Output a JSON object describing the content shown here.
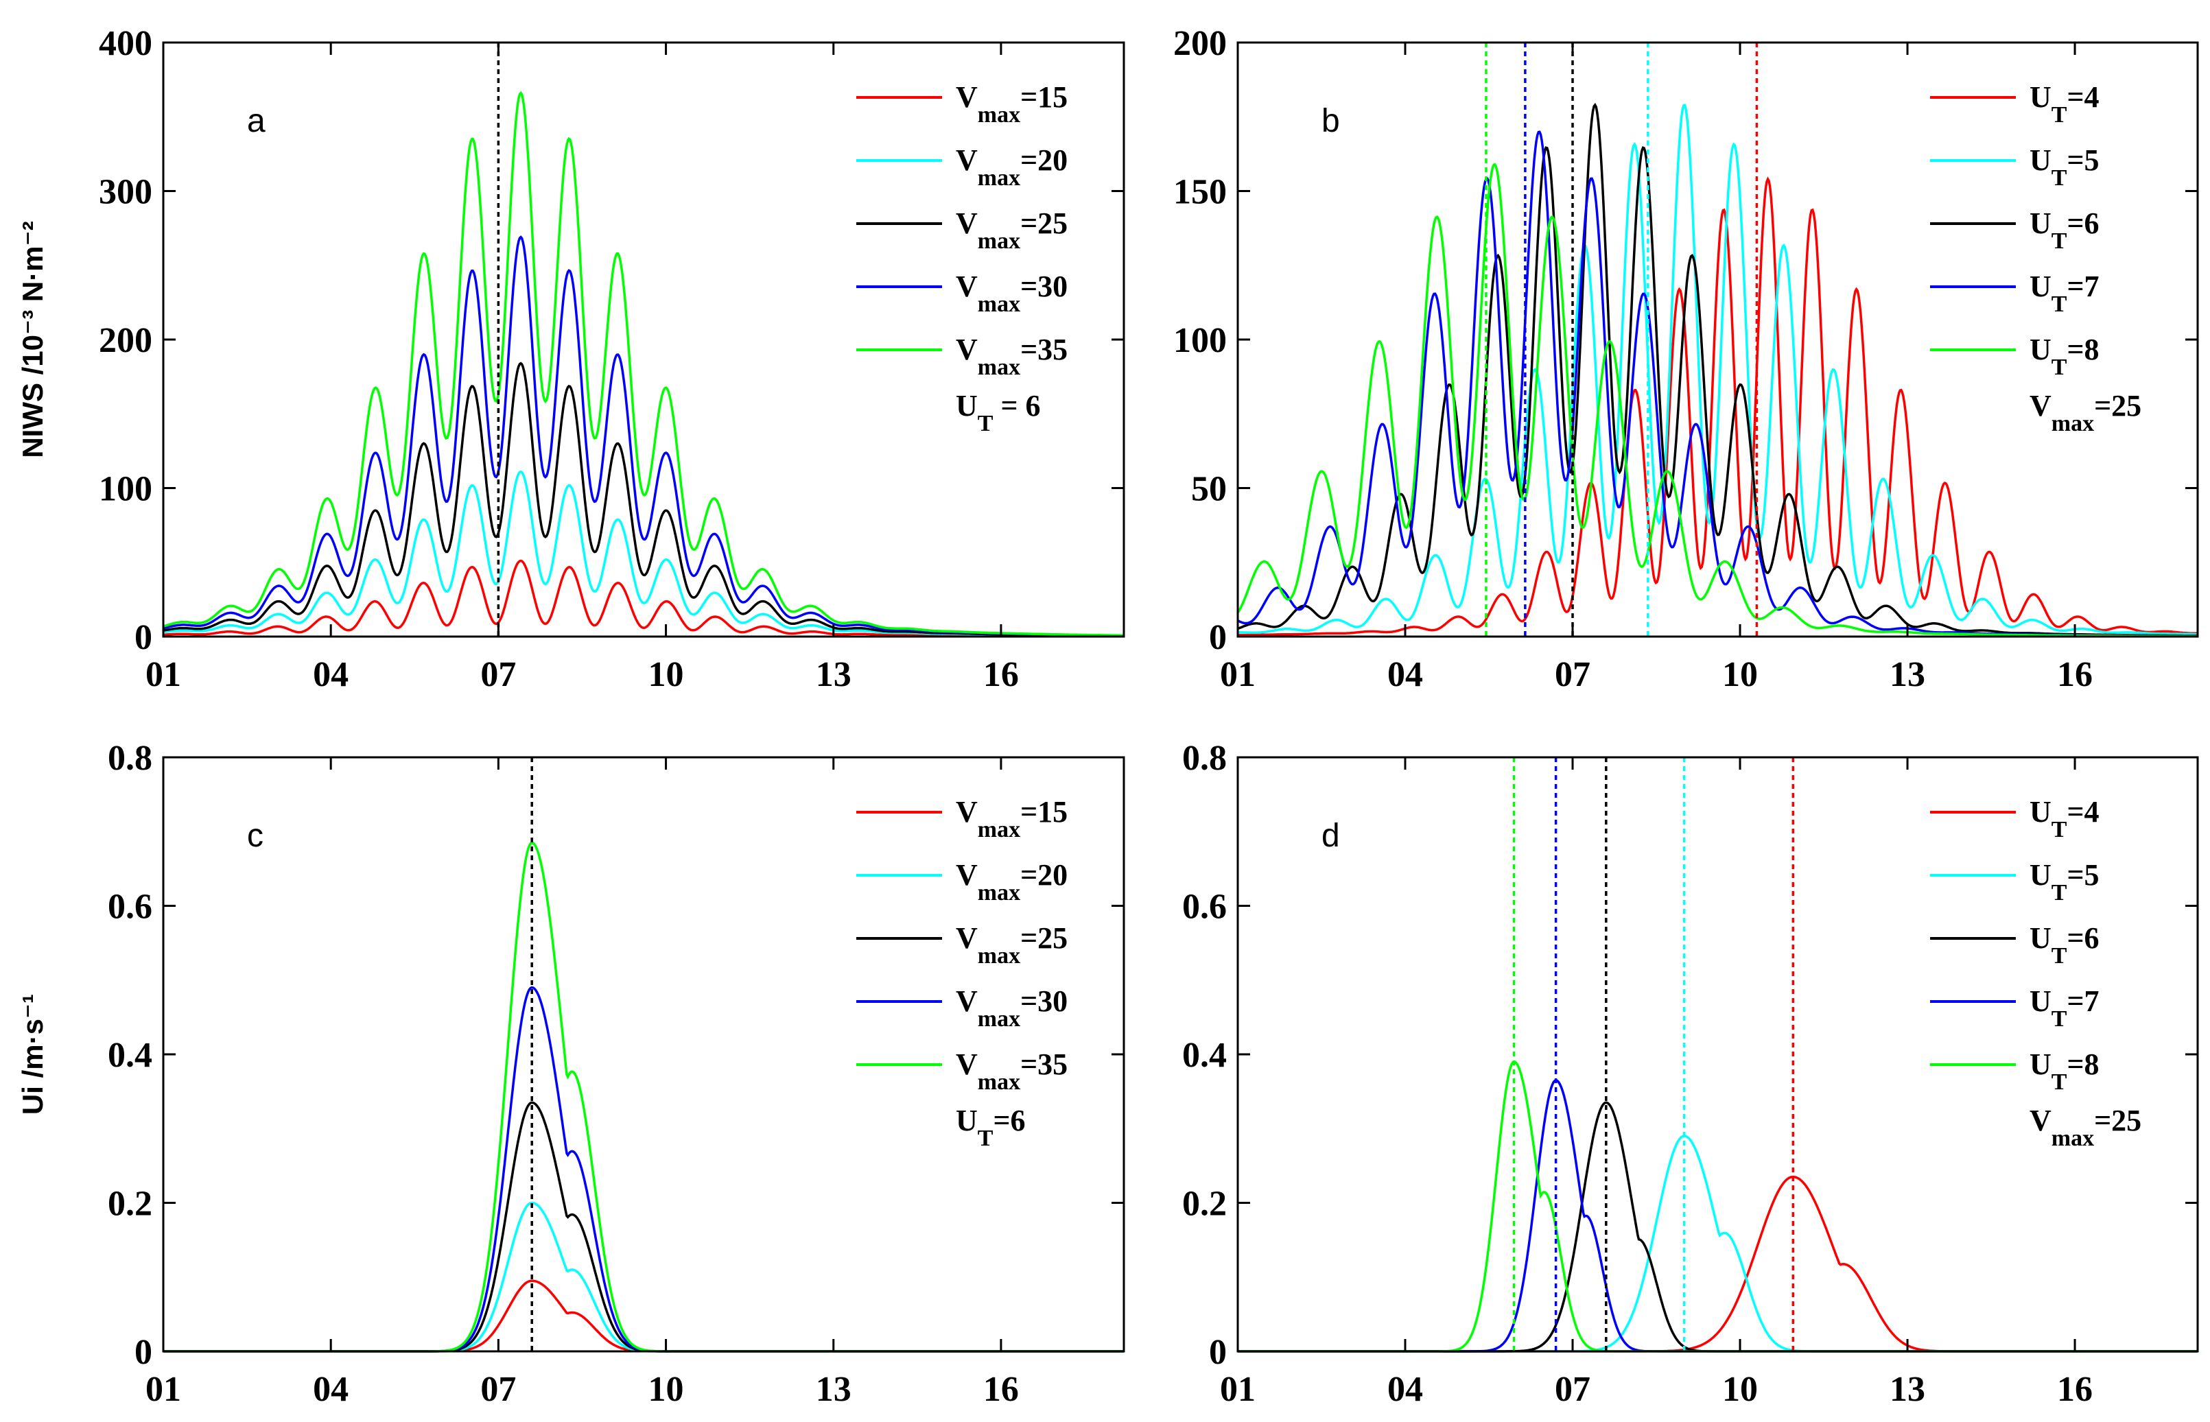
{
  "chart_data": [
    {
      "id": "a",
      "type": "line",
      "panel_label": "a",
      "ylabel": "NIWS /10⁻³ N·m⁻²",
      "ylim": [
        0,
        400
      ],
      "yticks": [
        0,
        100,
        200,
        300,
        400
      ],
      "ytick_labels": [
        "0",
        "100",
        "200",
        "300",
        "400"
      ],
      "xlim": [
        1,
        18.2
      ],
      "xticks": [
        1,
        4,
        7,
        10,
        13,
        16
      ],
      "xtick_labels": [
        "01",
        "04",
        "07",
        "10",
        "13",
        "16"
      ],
      "vlines": [
        {
          "x": 7.0,
          "color": "#000000"
        }
      ],
      "legend_note": {
        "base": "U",
        "sub": "T",
        "text": " = 6"
      },
      "series": [
        {
          "name": "Vmax=15",
          "base": "V",
          "sub": "max",
          "label": "=15",
          "color": "#ff0000",
          "peak": 48,
          "floor": 3,
          "kind": "niws",
          "center": 7.4,
          "width": 2.9,
          "freq": 0.88,
          "osc": 0.88
        },
        {
          "name": "Vmax=20",
          "base": "V",
          "sub": "max",
          "label": "=20",
          "color": "#00ffff",
          "peak": 104,
          "floor": 7,
          "kind": "niws",
          "center": 7.4,
          "width": 2.9,
          "freq": 0.88,
          "osc": 0.72
        },
        {
          "name": "Vmax=25",
          "base": "V",
          "sub": "max",
          "label": "=25",
          "color": "#000000",
          "peak": 175,
          "floor": 9,
          "kind": "niws",
          "center": 7.4,
          "width": 2.9,
          "freq": 0.88,
          "osc": 0.66
        },
        {
          "name": "Vmax=30",
          "base": "V",
          "sub": "max",
          "label": "=30",
          "color": "#0000ff",
          "peak": 257,
          "floor": 12,
          "kind": "niws",
          "center": 7.4,
          "width": 2.9,
          "freq": 0.88,
          "osc": 0.62
        },
        {
          "name": "Vmax=35",
          "base": "V",
          "sub": "max",
          "label": "=35",
          "color": "#00ff00",
          "peak": 352,
          "floor": 14,
          "kind": "niws",
          "center": 7.4,
          "width": 2.9,
          "freq": 0.88,
          "osc": 0.58
        }
      ]
    },
    {
      "id": "b",
      "type": "line",
      "panel_label": "b",
      "ylabel": "",
      "ylim": [
        0,
        200
      ],
      "yticks": [
        0,
        50,
        100,
        150,
        200
      ],
      "ytick_labels": [
        "0",
        "50",
        "100",
        "150",
        "200"
      ],
      "xlim": [
        1,
        18.2
      ],
      "xticks": [
        1,
        4,
        7,
        10,
        13,
        16
      ],
      "xtick_labels": [
        "01",
        "04",
        "07",
        "10",
        "13",
        "16"
      ],
      "vlines": [
        {
          "x": 5.45,
          "color": "#00ff00"
        },
        {
          "x": 6.15,
          "color": "#0000ff"
        },
        {
          "x": 7.0,
          "color": "#000000"
        },
        {
          "x": 8.35,
          "color": "#00ffff"
        },
        {
          "x": 10.3,
          "color": "#ff0000"
        }
      ],
      "legend_note": {
        "base": "V",
        "sub": "max",
        "text": "=25"
      },
      "series": [
        {
          "name": "UT=4",
          "base": "U",
          "sub": "T",
          "label": "=4",
          "color": "#ff0000",
          "peak": 150,
          "floor": 4,
          "kind": "niws",
          "center": 10.5,
          "width": 3.0,
          "freq": 0.8,
          "osc": 0.85
        },
        {
          "name": "UT=5",
          "base": "U",
          "sub": "T",
          "label": "=5",
          "color": "#00ffff",
          "peak": 175,
          "floor": 4,
          "kind": "niws",
          "center": 9.0,
          "width": 3.2,
          "freq": 0.9,
          "osc": 0.8
        },
        {
          "name": "UT=6",
          "base": "U",
          "sub": "T",
          "label": "=6",
          "color": "#000000",
          "peak": 175,
          "floor": 4,
          "kind": "niws",
          "center": 7.4,
          "width": 3.0,
          "freq": 0.88,
          "osc": 0.7
        },
        {
          "name": "UT=7",
          "base": "U",
          "sub": "T",
          "label": "=7",
          "color": "#0000ff",
          "peak": 166,
          "floor": 4,
          "kind": "niws",
          "center": 6.4,
          "width": 3.0,
          "freq": 0.95,
          "osc": 0.7
        },
        {
          "name": "UT=8",
          "base": "U",
          "sub": "T",
          "label": "=8",
          "color": "#00ff00",
          "peak": 155,
          "floor": 4,
          "kind": "niws",
          "center": 5.6,
          "width": 3.0,
          "freq": 1.05,
          "osc": 0.72
        }
      ]
    },
    {
      "id": "c",
      "type": "line",
      "panel_label": "c",
      "ylabel": "Ui /m·s⁻¹",
      "ylim": [
        0,
        0.8
      ],
      "yticks": [
        0,
        0.2,
        0.4,
        0.6,
        0.8
      ],
      "ytick_labels": [
        "0",
        "0.2",
        "0.4",
        "0.6",
        "0.8"
      ],
      "xlim": [
        1,
        18.2
      ],
      "xticks": [
        1,
        4,
        7,
        10,
        13,
        16
      ],
      "xtick_labels": [
        "01",
        "04",
        "07",
        "10",
        "13",
        "16"
      ],
      "vlines": [
        {
          "x": 7.6,
          "color": "#000000"
        }
      ],
      "legend_note": {
        "base": "U",
        "sub": "T",
        "text": "=6"
      },
      "series": [
        {
          "name": "Vmax=15",
          "base": "V",
          "sub": "max",
          "label": "=15",
          "color": "#ff0000",
          "peak": 0.095,
          "kind": "ui",
          "center": 7.6,
          "wl": 0.6,
          "wr": 0.8,
          "shoulder": 0.55
        },
        {
          "name": "Vmax=20",
          "base": "V",
          "sub": "max",
          "label": "=20",
          "color": "#00ffff",
          "peak": 0.2,
          "kind": "ui",
          "center": 7.6,
          "wl": 0.6,
          "wr": 0.8,
          "shoulder": 0.55
        },
        {
          "name": "Vmax=25",
          "base": "V",
          "sub": "max",
          "label": "=25",
          "color": "#000000",
          "peak": 0.335,
          "kind": "ui",
          "center": 7.6,
          "wl": 0.6,
          "wr": 0.8,
          "shoulder": 0.55
        },
        {
          "name": "Vmax=30",
          "base": "V",
          "sub": "max",
          "label": "=30",
          "color": "#0000ff",
          "peak": 0.49,
          "kind": "ui",
          "center": 7.6,
          "wl": 0.6,
          "wr": 0.8,
          "shoulder": 0.55
        },
        {
          "name": "Vmax=35",
          "base": "V",
          "sub": "max",
          "label": "=35",
          "color": "#00ff00",
          "peak": 0.685,
          "kind": "ui",
          "center": 7.6,
          "wl": 0.6,
          "wr": 0.8,
          "shoulder": 0.55
        }
      ]
    },
    {
      "id": "d",
      "type": "line",
      "panel_label": "d",
      "ylabel": "",
      "ylim": [
        0,
        0.8
      ],
      "yticks": [
        0,
        0.2,
        0.4,
        0.6,
        0.8
      ],
      "ytick_labels": [
        "0",
        "0.2",
        "0.4",
        "0.6",
        "0.8"
      ],
      "xlim": [
        1,
        18.2
      ],
      "xticks": [
        1,
        4,
        7,
        10,
        13,
        16
      ],
      "xtick_labels": [
        "01",
        "04",
        "07",
        "10",
        "13",
        "16"
      ],
      "vlines": [
        {
          "x": 5.95,
          "color": "#00ff00"
        },
        {
          "x": 6.7,
          "color": "#0000ff"
        },
        {
          "x": 7.6,
          "color": "#000000"
        },
        {
          "x": 9.0,
          "color": "#00ffff"
        },
        {
          "x": 10.95,
          "color": "#ff0000"
        }
      ],
      "legend_note": {
        "base": "V",
        "sub": "max",
        "text": "=25"
      },
      "series": [
        {
          "name": "UT=4",
          "base": "U",
          "sub": "T",
          "label": "=4",
          "color": "#ff0000",
          "peak": 0.235,
          "kind": "ui",
          "center": 10.95,
          "wl": 0.9,
          "wr": 1.0,
          "shoulder": 0.5
        },
        {
          "name": "UT=5",
          "base": "U",
          "sub": "T",
          "label": "=5",
          "color": "#00ffff",
          "peak": 0.29,
          "kind": "ui",
          "center": 9.0,
          "wl": 0.7,
          "wr": 0.8,
          "shoulder": 0.55
        },
        {
          "name": "UT=6",
          "base": "U",
          "sub": "T",
          "label": "=6",
          "color": "#000000",
          "peak": 0.335,
          "kind": "ui",
          "center": 7.6,
          "wl": 0.6,
          "wr": 0.65,
          "shoulder": 0.45
        },
        {
          "name": "UT=7",
          "base": "U",
          "sub": "T",
          "label": "=7",
          "color": "#0000ff",
          "peak": 0.365,
          "kind": "ui",
          "center": 6.7,
          "wl": 0.5,
          "wr": 0.6,
          "shoulder": 0.5
        },
        {
          "name": "UT=8",
          "base": "U",
          "sub": "T",
          "label": "=8",
          "color": "#00ff00",
          "peak": 0.39,
          "kind": "ui",
          "center": 5.95,
          "wl": 0.45,
          "wr": 0.6,
          "shoulder": 0.55
        }
      ]
    }
  ]
}
